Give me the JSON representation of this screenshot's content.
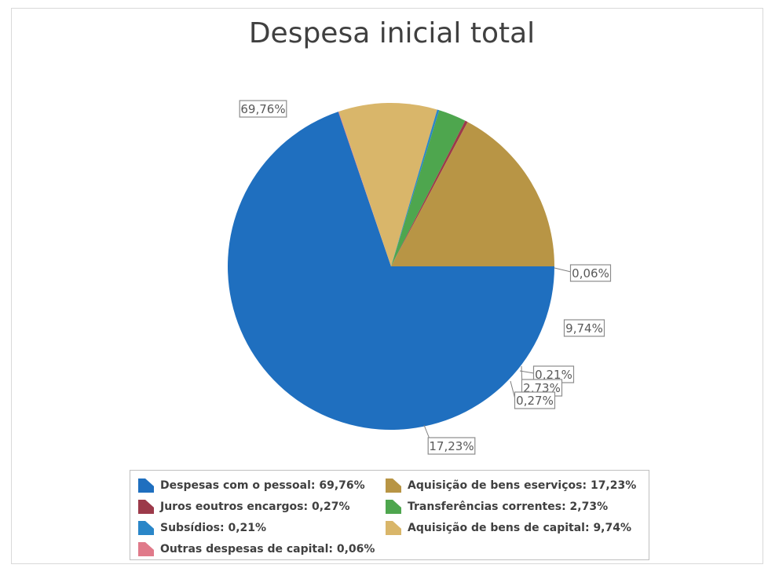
{
  "chart_data": {
    "type": "pie",
    "title": "Despesa inicial total",
    "slices": [
      {
        "label": "Despesas com o pessoal",
        "value": 69.76,
        "data_label": "69,76%",
        "color": "#1f6fbf",
        "legend_text": "Despesas com o pessoal: 69,76%"
      },
      {
        "label": "Outras despesas de capital",
        "value": 0.06,
        "data_label": "0,06%",
        "color": "#e07a8a",
        "legend_text": "Outras despesas de capital: 0,06%"
      },
      {
        "label": "Aquisição de bens de capital",
        "value": 9.74,
        "data_label": "9,74%",
        "color": "#d9b66a",
        "legend_text": "Aquisição de bens de capital: 9,74%"
      },
      {
        "label": "Subsídios",
        "value": 0.21,
        "data_label": "0,21%",
        "color": "#2a86c8",
        "legend_text": "Subsídios: 0,21%"
      },
      {
        "label": "Transferências correntes",
        "value": 2.73,
        "data_label": "2,73%",
        "color": "#4ea64e",
        "legend_text": "Transferências correntes: 2,73%"
      },
      {
        "label": "Juros e outros encargos",
        "value": 0.27,
        "data_label": "0,27%",
        "color": "#9c3a4a",
        "legend_text": "Juros eoutros encargos: 0,27%"
      },
      {
        "label": "Aquisição de bens e serviços",
        "value": 17.23,
        "data_label": "17,23%",
        "color": "#b89545",
        "legend_text": "Aquisição de bens eserviços: 17,23%"
      }
    ],
    "legend": {
      "placement": "bottom",
      "order": [
        0,
        6,
        5,
        4,
        3,
        2,
        1
      ]
    }
  }
}
